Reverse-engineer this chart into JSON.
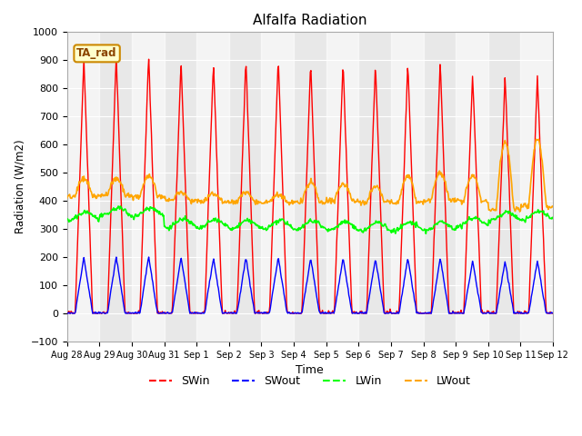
{
  "title": "Alfalfa Radiation",
  "xlabel": "Time",
  "ylabel": "Radiation (W/m2)",
  "ylim": [
    -100,
    1000
  ],
  "plot_bg": "#e8e8e8",
  "fig_bg": "#ffffff",
  "legend_labels": [
    "SWin",
    "SWout",
    "LWin",
    "LWout"
  ],
  "legend_colors": [
    "red",
    "blue",
    "green",
    "orange"
  ],
  "annotation_text": "TA_rad",
  "annotation_bg": "#ffffcc",
  "annotation_border": "#cc8800",
  "xtick_labels": [
    "Aug 28",
    "Aug 29",
    "Aug 30",
    "Aug 31",
    "Sep 1",
    "Sep 2",
    "Sep 3",
    "Sep 4",
    "Sep 5",
    "Sep 6",
    "Sep 7",
    "Sep 8",
    "Sep 9",
    "Sep 10",
    "Sep 11",
    "Sep 12"
  ],
  "grid_color": "#cccccc",
  "num_days": 15,
  "SWin_peaks": [
    910,
    920,
    920,
    900,
    895,
    910,
    905,
    890,
    895,
    890,
    895,
    895,
    850,
    845,
    845
  ],
  "LWout_peaks": [
    480,
    480,
    490,
    430,
    425,
    430,
    420,
    465,
    460,
    450,
    490,
    500,
    490,
    610,
    620
  ],
  "LWout_base": [
    415,
    420,
    415,
    400,
    400,
    395,
    395,
    395,
    400,
    395,
    395,
    400,
    400,
    370,
    380
  ],
  "LWin_base": [
    345,
    360,
    360,
    320,
    318,
    315,
    315,
    315,
    310,
    308,
    308,
    310,
    325,
    345,
    348
  ]
}
